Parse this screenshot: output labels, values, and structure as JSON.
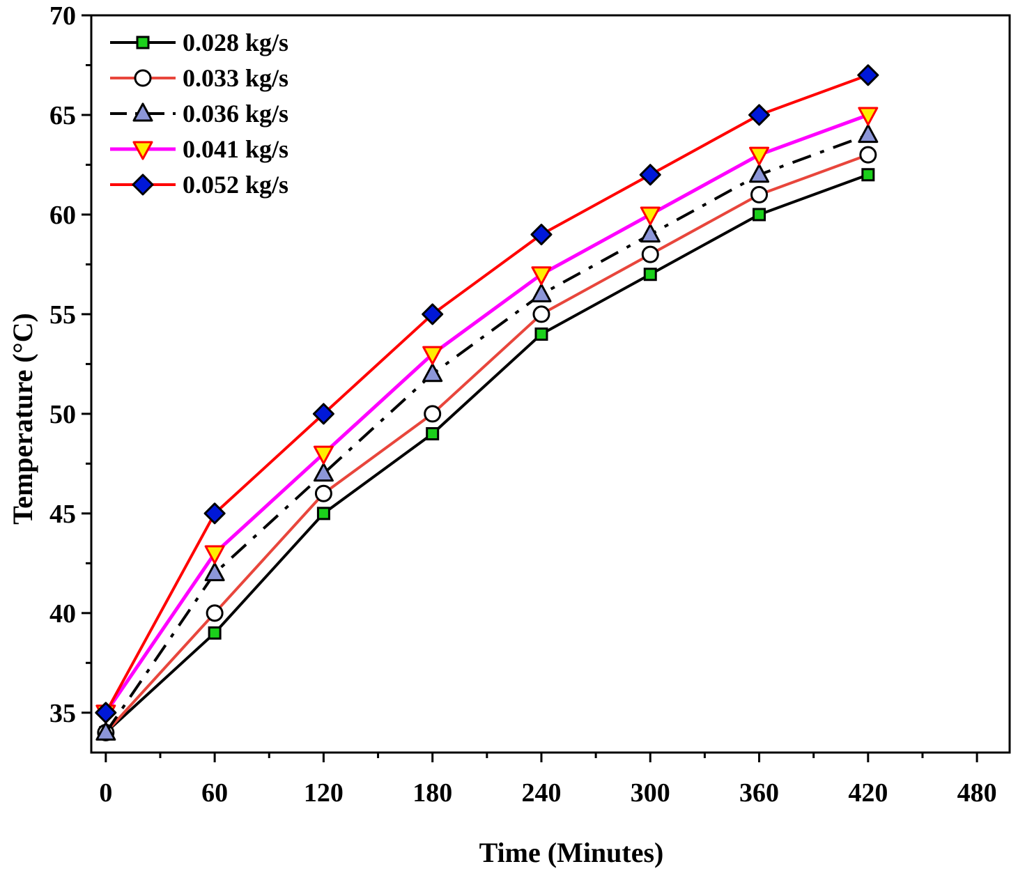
{
  "chart_data": {
    "type": "line",
    "xlabel": "Time (Minutes)",
    "ylabel": "Temperature (°C)",
    "xlim": [
      -8,
      498
    ],
    "ylim": [
      33,
      70
    ],
    "xticks": [
      "0",
      "60",
      "120",
      "180",
      "240",
      "300",
      "360",
      "420",
      "480"
    ],
    "yticks": [
      "35",
      "40",
      "45",
      "50",
      "55",
      "60",
      "65",
      "70"
    ],
    "x": [
      0,
      60,
      120,
      180,
      240,
      300,
      360,
      420
    ],
    "legend_position": "top-left",
    "series": [
      {
        "name": "0.028 kg/s",
        "values": [
          34,
          39,
          45,
          49,
          54,
          57,
          60,
          62
        ],
        "line_color": "#000000",
        "line_style": "solid",
        "marker": "square",
        "marker_fill": "#1bd01b"
      },
      {
        "name": "0.033 kg/s",
        "values": [
          34,
          40,
          46,
          50,
          55,
          58,
          61,
          63
        ],
        "line_color": "#e8463c",
        "line_style": "solid",
        "marker": "circle",
        "marker_fill": "#ffffff"
      },
      {
        "name": "0.036 kg/s",
        "values": [
          34,
          42,
          47,
          52,
          56,
          59,
          62,
          64
        ],
        "line_color": "#000000",
        "line_style": "dash-dot",
        "marker": "triangle-up",
        "marker_fill": "#8c96d8"
      },
      {
        "name": "0.041 kg/s",
        "values": [
          35,
          43,
          48,
          53,
          57,
          60,
          63,
          65
        ],
        "line_color": "#ff00ff",
        "line_style": "solid",
        "marker": "triangle-down",
        "marker_fill": "#ffee00",
        "marker_stroke": "#ff0000"
      },
      {
        "name": "0.052 kg/s",
        "values": [
          35,
          45,
          50,
          55,
          59,
          62,
          65,
          67
        ],
        "line_color": "#ff0000",
        "line_style": "solid",
        "marker": "diamond",
        "marker_fill": "#0018d8"
      }
    ],
    "grid": false
  }
}
